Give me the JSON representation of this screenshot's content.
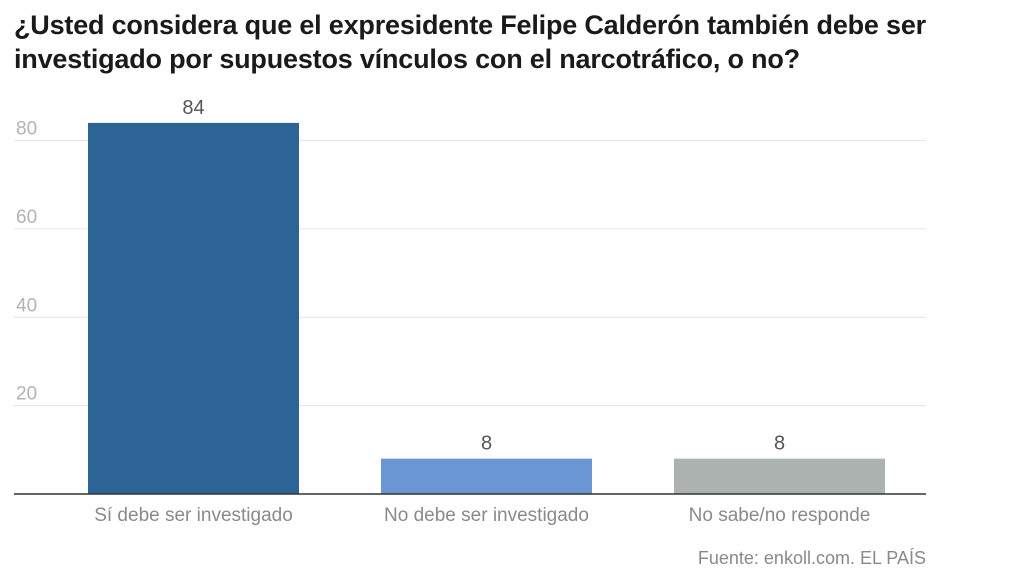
{
  "chart_data": {
    "type": "bar",
    "title": "¿Usted considera que el expresidente Felipe Calderón también debe ser investigado por supuestos vínculos con el narcotráfico, o no?",
    "categories": [
      "Sí debe ser investigado",
      "No debe ser investigado",
      "No sabe/no responde"
    ],
    "values": [
      84,
      8,
      8
    ],
    "value_labels": [
      "84",
      "8",
      "8"
    ],
    "colors": [
      "#2d6496",
      "#6a96d4",
      "#acb2b0"
    ],
    "ylim": [
      0,
      90
    ],
    "yticks": [
      20,
      40,
      60,
      80
    ],
    "ytick_labels": [
      "20",
      "40",
      "60",
      "80"
    ],
    "grid": true,
    "xlabel": "",
    "ylabel": ""
  },
  "source": "Fuente: enkoll.com. EL PAÍS"
}
